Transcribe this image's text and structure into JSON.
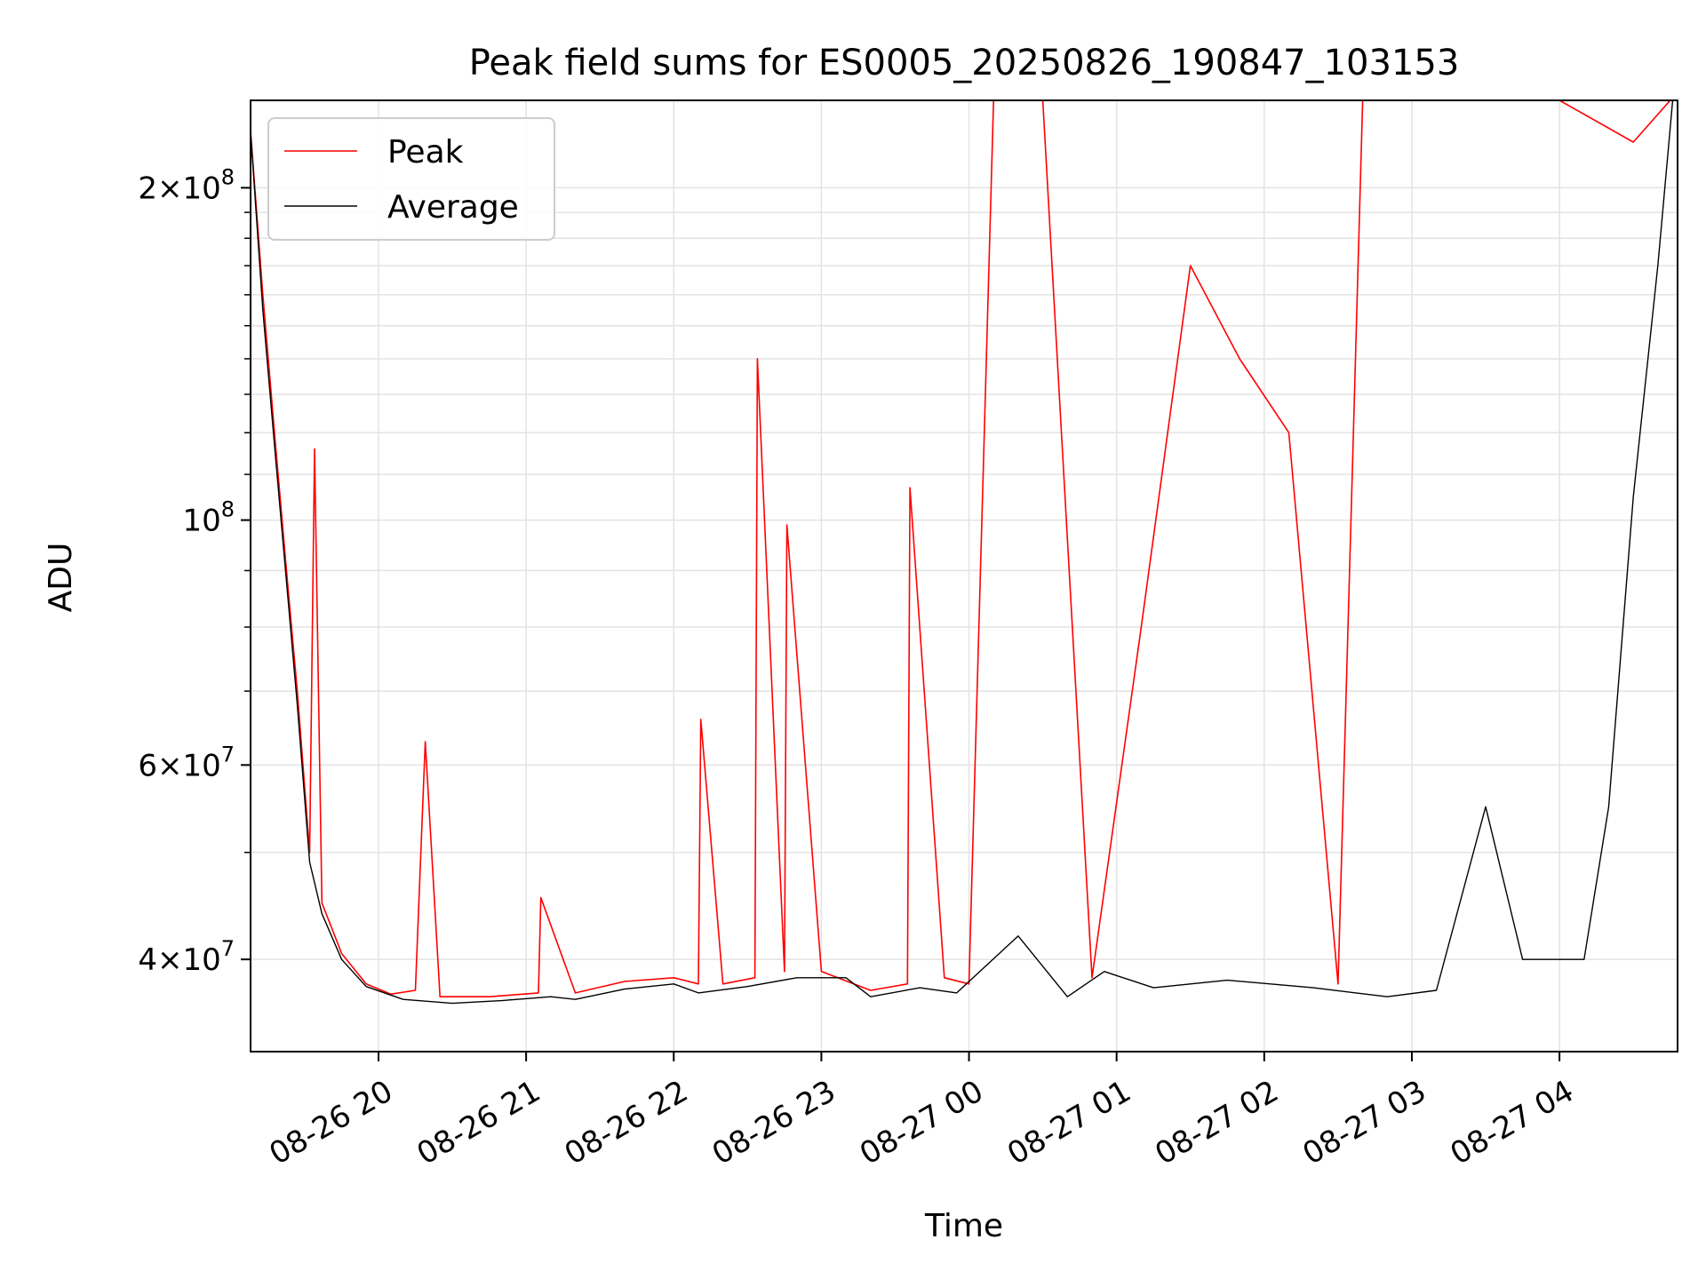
{
  "chart_data": {
    "type": "line",
    "title": "Peak field sums for ES0005_20250826_190847_103153",
    "xlabel": "Time",
    "ylabel": "ADU",
    "x_range": [
      "2025-08-26 19:08:47",
      "2025-08-27 04:48:00"
    ],
    "y_scale": "log",
    "ylim": [
      33000000,
      240000000
    ],
    "grid": true,
    "legend_position": "top-left",
    "x_ticks": [
      {
        "t": "2025-08-26 20:00",
        "label": "08-26 20"
      },
      {
        "t": "2025-08-26 21:00",
        "label": "08-26 21"
      },
      {
        "t": "2025-08-26 22:00",
        "label": "08-26 22"
      },
      {
        "t": "2025-08-26 23:00",
        "label": "08-26 23"
      },
      {
        "t": "2025-08-27 00:00",
        "label": "08-27 00"
      },
      {
        "t": "2025-08-27 01:00",
        "label": "08-27 01"
      },
      {
        "t": "2025-08-27 02:00",
        "label": "08-27 02"
      },
      {
        "t": "2025-08-27 03:00",
        "label": "08-27 03"
      },
      {
        "t": "2025-08-27 04:00",
        "label": "08-27 04"
      }
    ],
    "y_ticks": [
      {
        "value": 40000000,
        "mant": "4",
        "exp": "7"
      },
      {
        "value": 60000000,
        "mant": "6",
        "exp": "7"
      },
      {
        "value": 100000000,
        "mant": "",
        "exp": "8"
      },
      {
        "value": 200000000,
        "mant": "2",
        "exp": "8"
      }
    ],
    "series": [
      {
        "name": "Peak",
        "color": "#ff0000",
        "points": [
          [
            "2025-08-26 19:08",
            225000000
          ],
          [
            "2025-08-26 19:13",
            160000000
          ],
          [
            "2025-08-26 19:18",
            118000000
          ],
          [
            "2025-08-26 19:23",
            88000000
          ],
          [
            "2025-08-26 19:27",
            70000000
          ],
          [
            "2025-08-26 19:32",
            50000000
          ],
          [
            "2025-08-26 19:34",
            116000000
          ],
          [
            "2025-08-26 19:37",
            45000000
          ],
          [
            "2025-08-26 19:45",
            40500000
          ],
          [
            "2025-08-26 19:55",
            38000000
          ],
          [
            "2025-08-26 20:05",
            37200000
          ],
          [
            "2025-08-26 20:15",
            37500000
          ],
          [
            "2025-08-26 20:19",
            63000000
          ],
          [
            "2025-08-26 20:25",
            37000000
          ],
          [
            "2025-08-26 20:45",
            37000000
          ],
          [
            "2025-08-26 21:05",
            37300000
          ],
          [
            "2025-08-26 21:06",
            45500000
          ],
          [
            "2025-08-26 21:20",
            37300000
          ],
          [
            "2025-08-26 21:40",
            38200000
          ],
          [
            "2025-08-26 22:00",
            38500000
          ],
          [
            "2025-08-26 22:10",
            38000000
          ],
          [
            "2025-08-26 22:11",
            66000000
          ],
          [
            "2025-08-26 22:20",
            38000000
          ],
          [
            "2025-08-26 22:33",
            38500000
          ],
          [
            "2025-08-26 22:34",
            140000000
          ],
          [
            "2025-08-26 22:45",
            39000000
          ],
          [
            "2025-08-26 22:46",
            99000000
          ],
          [
            "2025-08-26 23:00",
            39000000
          ],
          [
            "2025-08-26 23:20",
            37500000
          ],
          [
            "2025-08-26 23:35",
            38000000
          ],
          [
            "2025-08-26 23:36",
            107000000
          ],
          [
            "2025-08-26 23:50",
            38500000
          ],
          [
            "2025-08-27 00:00",
            38000000
          ],
          [
            "2025-08-27 00:10",
            240000000
          ],
          [
            "2025-08-27 00:30",
            240000000
          ],
          [
            "2025-08-27 00:50",
            38500000
          ],
          [
            "2025-08-27 01:10",
            80000000
          ],
          [
            "2025-08-27 01:30",
            170000000
          ],
          [
            "2025-08-27 01:50",
            140000000
          ],
          [
            "2025-08-27 02:10",
            120000000
          ],
          [
            "2025-08-27 02:30",
            38000000
          ],
          [
            "2025-08-27 02:40",
            240000000
          ],
          [
            "2025-08-27 03:00",
            240000000
          ],
          [
            "2025-08-27 03:30",
            240000000
          ],
          [
            "2025-08-27 04:00",
            240000000
          ],
          [
            "2025-08-27 04:30",
            220000000
          ],
          [
            "2025-08-27 04:45",
            240000000
          ]
        ]
      },
      {
        "name": "Average",
        "color": "#000000",
        "points": [
          [
            "2025-08-26 19:08",
            225000000
          ],
          [
            "2025-08-26 19:13",
            155000000
          ],
          [
            "2025-08-26 19:18",
            115000000
          ],
          [
            "2025-08-26 19:23",
            86000000
          ],
          [
            "2025-08-26 19:27",
            68000000
          ],
          [
            "2025-08-26 19:32",
            49000000
          ],
          [
            "2025-08-26 19:37",
            44000000
          ],
          [
            "2025-08-26 19:45",
            40000000
          ],
          [
            "2025-08-26 19:55",
            37800000
          ],
          [
            "2025-08-26 20:10",
            36800000
          ],
          [
            "2025-08-26 20:30",
            36500000
          ],
          [
            "2025-08-26 20:50",
            36700000
          ],
          [
            "2025-08-26 21:10",
            37000000
          ],
          [
            "2025-08-26 21:20",
            36800000
          ],
          [
            "2025-08-26 21:40",
            37600000
          ],
          [
            "2025-08-26 22:00",
            38000000
          ],
          [
            "2025-08-26 22:10",
            37300000
          ],
          [
            "2025-08-26 22:30",
            37800000
          ],
          [
            "2025-08-26 22:50",
            38500000
          ],
          [
            "2025-08-26 23:10",
            38500000
          ],
          [
            "2025-08-26 23:20",
            37000000
          ],
          [
            "2025-08-26 23:40",
            37700000
          ],
          [
            "2025-08-26 23:55",
            37300000
          ],
          [
            "2025-08-27 00:20",
            42000000
          ],
          [
            "2025-08-27 00:40",
            37000000
          ],
          [
            "2025-08-27 00:55",
            39000000
          ],
          [
            "2025-08-27 01:15",
            37700000
          ],
          [
            "2025-08-27 01:45",
            38300000
          ],
          [
            "2025-08-27 02:20",
            37700000
          ],
          [
            "2025-08-27 02:50",
            37000000
          ],
          [
            "2025-08-27 03:10",
            37500000
          ],
          [
            "2025-08-27 03:30",
            55000000
          ],
          [
            "2025-08-27 03:45",
            40000000
          ],
          [
            "2025-08-27 04:10",
            40000000
          ],
          [
            "2025-08-27 04:20",
            55000000
          ],
          [
            "2025-08-27 04:30",
            105000000
          ],
          [
            "2025-08-27 04:40",
            170000000
          ],
          [
            "2025-08-27 04:46",
            240000000
          ]
        ]
      }
    ]
  }
}
